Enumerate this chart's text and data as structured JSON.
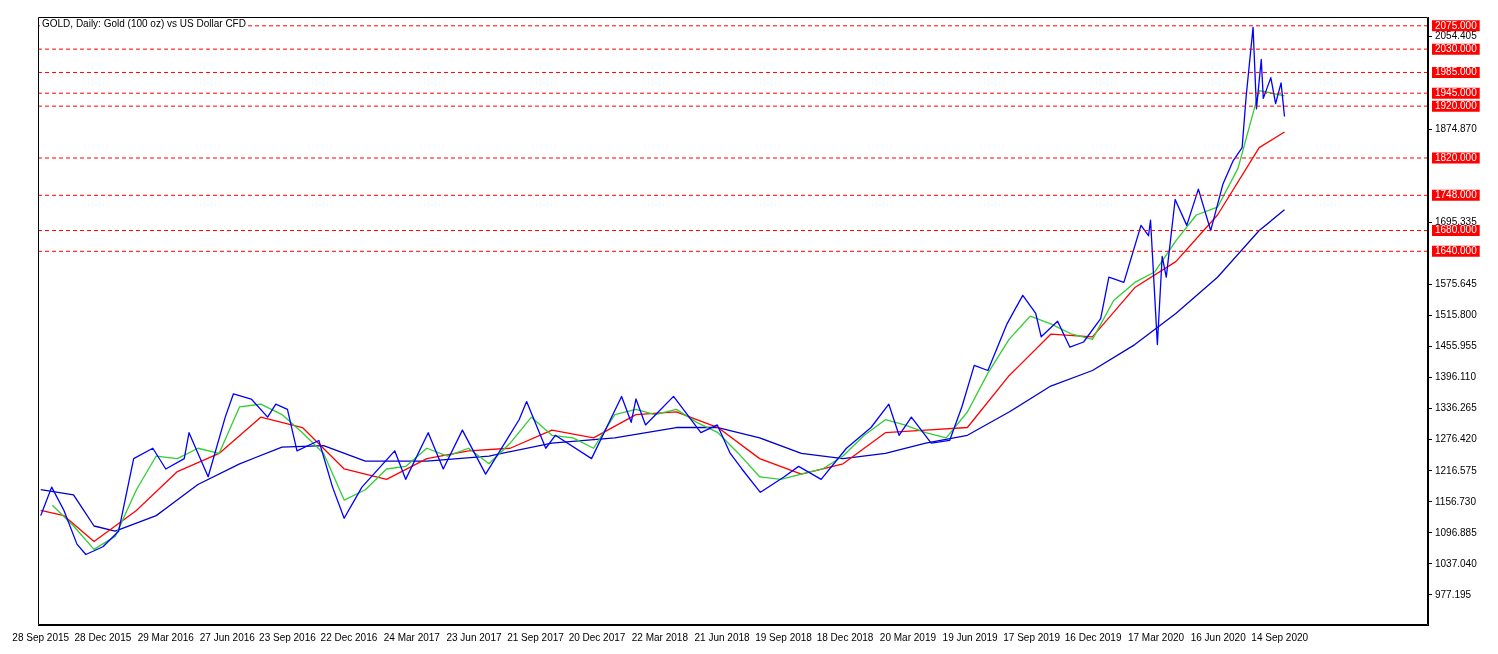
{
  "chart_data": {
    "type": "line",
    "title": "GOLD, Daily: Gold (100 oz) vs US Dollar CFD",
    "xlim": [
      "2015-09-24",
      "2021-04-19"
    ],
    "xticks": [
      {
        "value": "2015-09-28",
        "label": "28 Sep 2015"
      },
      {
        "value": "2015-12-28",
        "label": "28 Dec 2015"
      },
      {
        "value": "2016-03-29",
        "label": "29 Mar 2016"
      },
      {
        "value": "2016-06-27",
        "label": "27 Jun 2016"
      },
      {
        "value": "2016-09-23",
        "label": "23 Sep 2016"
      },
      {
        "value": "2016-12-22",
        "label": "22 Dec 2016"
      },
      {
        "value": "2017-03-24",
        "label": "24 Mar 2017"
      },
      {
        "value": "2017-06-23",
        "label": "23 Jun 2017"
      },
      {
        "value": "2017-09-21",
        "label": "21 Sep 2017"
      },
      {
        "value": "2017-12-20",
        "label": "20 Dec 2017"
      },
      {
        "value": "2018-03-22",
        "label": "22 Mar 2018"
      },
      {
        "value": "2018-06-21",
        "label": "21 Jun 2018"
      },
      {
        "value": "2018-09-19",
        "label": "19 Sep 2018"
      },
      {
        "value": "2018-12-18",
        "label": "18 Dec 2018"
      },
      {
        "value": "2019-03-20",
        "label": "20 Mar 2019"
      },
      {
        "value": "2019-06-19",
        "label": "19 Jun 2019"
      },
      {
        "value": "2019-09-17",
        "label": "17 Sep 2019"
      },
      {
        "value": "2019-12-16",
        "label": "16 Dec 2019"
      },
      {
        "value": "2020-03-17",
        "label": "17 Mar 2020"
      },
      {
        "value": "2020-06-16",
        "label": "16 Jun 2020"
      },
      {
        "value": "2020-09-14",
        "label": "14 Sep 2020"
      }
    ],
    "ylim": [
      919,
      2092
    ],
    "yticks": [
      977.195,
      {
        "value": 1037.04,
        "label": "1037.040"
      },
      1096.885,
      {
        "value": 1156.73,
        "label": "1156.730"
      },
      1216.575,
      {
        "value": 1276.42,
        "label": "1276.420"
      },
      1336.265,
      {
        "value": 1396.11,
        "label": "1396.110"
      },
      1455.955,
      {
        "value": 1515.8,
        "label": "1515.800"
      },
      1575.645,
      1695.335,
      {
        "value": 1874.87,
        "label": "1874.870"
      },
      2054.405
    ],
    "grid": false,
    "legend": false,
    "marker": "none",
    "line_style": "solid",
    "series": [
      {
        "color": "#0000ff",
        "x": [
          "2015-09-28",
          "2015-10-14",
          "2015-11-01",
          "2015-11-20",
          "2015-12-03",
          "2015-12-28",
          "2016-01-20",
          "2016-02-11",
          "2016-03-10",
          "2016-03-29",
          "2016-04-25",
          "2016-05-02",
          "2016-05-30",
          "2016-06-24",
          "2016-07-06",
          "2016-08-01",
          "2016-08-25",
          "2016-09-06",
          "2016-09-23",
          "2016-10-07",
          "2016-11-08",
          "2016-11-28",
          "2016-12-15",
          "2017-01-10",
          "2017-02-27",
          "2017-03-15",
          "2017-04-17",
          "2017-05-09",
          "2017-06-06",
          "2017-07-10",
          "2017-08-28",
          "2017-09-08",
          "2017-10-06",
          "2017-10-20",
          "2017-12-12",
          "2018-01-25",
          "2018-02-08",
          "2018-02-15",
          "2018-03-01",
          "2018-04-11",
          "2018-05-21",
          "2018-06-14",
          "2018-07-03",
          "2018-07-20",
          "2018-08-16",
          "2018-09-20",
          "2018-10-11",
          "2018-11-13",
          "2018-12-20",
          "2019-01-25",
          "2019-02-20",
          "2019-03-07",
          "2019-03-25",
          "2019-04-23",
          "2019-05-20",
          "2019-06-07",
          "2019-06-25",
          "2019-07-15",
          "2019-08-12",
          "2019-09-04",
          "2019-09-23",
          "2019-10-01",
          "2019-10-25",
          "2019-11-12",
          "2019-12-02",
          "2019-12-27",
          "2020-01-08",
          "2020-01-30",
          "2020-02-24",
          "2020-03-06",
          "2020-03-09",
          "2020-03-19",
          "2020-03-26",
          "2020-04-01",
          "2020-04-14",
          "2020-05-01",
          "2020-05-18",
          "2020-06-05",
          "2020-06-23",
          "2020-07-08",
          "2020-07-21",
          "2020-07-27",
          "2020-08-06",
          "2020-08-11",
          "2020-08-18",
          "2020-08-21",
          "2020-09-01",
          "2020-09-08",
          "2020-09-16",
          "2020-09-21"
        ],
        "values": [
          1130,
          1185,
          1140,
          1075,
          1055,
          1070,
          1100,
          1240,
          1260,
          1220,
          1240,
          1290,
          1205,
          1320,
          1365,
          1355,
          1320,
          1345,
          1335,
          1255,
          1275,
          1185,
          1125,
          1185,
          1255,
          1200,
          1290,
          1220,
          1295,
          1210,
          1315,
          1350,
          1260,
          1285,
          1240,
          1360,
          1310,
          1355,
          1305,
          1360,
          1290,
          1305,
          1250,
          1220,
          1175,
          1205,
          1225,
          1200,
          1260,
          1300,
          1345,
          1285,
          1320,
          1270,
          1275,
          1340,
          1420,
          1410,
          1500,
          1555,
          1520,
          1475,
          1505,
          1455,
          1465,
          1510,
          1590,
          1580,
          1690,
          1670,
          1700,
          1460,
          1630,
          1590,
          1740,
          1690,
          1760,
          1680,
          1770,
          1815,
          1840,
          1940,
          2072,
          1915,
          2010,
          1935,
          1975,
          1925,
          1965,
          1900
        ]
      },
      {
        "color": "#32cd32",
        "x": [
          "2015-10-15",
          "2015-11-15",
          "2015-12-15",
          "2016-01-15",
          "2016-02-15",
          "2016-03-15",
          "2016-04-15",
          "2016-05-15",
          "2016-06-15",
          "2016-07-15",
          "2016-08-15",
          "2016-09-15",
          "2016-10-15",
          "2016-11-15",
          "2016-12-15",
          "2017-01-15",
          "2017-02-15",
          "2017-03-15",
          "2017-04-15",
          "2017-05-15",
          "2017-06-15",
          "2017-07-15",
          "2017-08-15",
          "2017-09-15",
          "2017-10-15",
          "2017-11-15",
          "2017-12-15",
          "2018-01-15",
          "2018-02-15",
          "2018-03-15",
          "2018-04-15",
          "2018-05-15",
          "2018-06-15",
          "2018-07-15",
          "2018-08-15",
          "2018-09-15",
          "2018-10-15",
          "2018-11-15",
          "2018-12-15",
          "2019-01-15",
          "2019-02-15",
          "2019-03-15",
          "2019-04-15",
          "2019-05-15",
          "2019-06-15",
          "2019-07-15",
          "2019-08-15",
          "2019-09-15",
          "2019-10-15",
          "2019-11-15",
          "2019-12-15",
          "2020-01-15",
          "2020-02-15",
          "2020-03-15",
          "2020-04-15",
          "2020-05-15",
          "2020-06-15",
          "2020-07-15",
          "2020-08-15",
          "2020-09-21"
        ],
        "values": [
          1150,
          1110,
          1065,
          1090,
          1180,
          1245,
          1240,
          1260,
          1250,
          1340,
          1345,
          1325,
          1290,
          1250,
          1160,
          1180,
          1220,
          1225,
          1260,
          1245,
          1260,
          1230,
          1270,
          1320,
          1285,
          1280,
          1260,
          1325,
          1335,
          1325,
          1335,
          1310,
          1290,
          1250,
          1205,
          1200,
          1210,
          1220,
          1245,
          1285,
          1315,
          1305,
          1290,
          1280,
          1330,
          1405,
          1470,
          1515,
          1500,
          1480,
          1470,
          1545,
          1580,
          1600,
          1660,
          1710,
          1725,
          1800,
          1950,
          1940
        ]
      },
      {
        "color": "#ff0000",
        "x": [
          "2015-09-28",
          "2015-11-01",
          "2015-12-15",
          "2016-02-15",
          "2016-04-15",
          "2016-06-15",
          "2016-08-15",
          "2016-10-15",
          "2016-12-15",
          "2017-02-15",
          "2017-04-15",
          "2017-06-15",
          "2017-08-15",
          "2017-10-15",
          "2017-12-15",
          "2018-02-15",
          "2018-04-15",
          "2018-06-15",
          "2018-08-15",
          "2018-10-15",
          "2018-12-15",
          "2019-02-15",
          "2019-04-15",
          "2019-06-15",
          "2019-08-15",
          "2019-10-15",
          "2019-12-15",
          "2020-02-15",
          "2020-04-15",
          "2020-06-15",
          "2020-08-15",
          "2020-09-21"
        ],
        "values": [
          1140,
          1130,
          1080,
          1140,
          1215,
          1250,
          1320,
          1300,
          1220,
          1200,
          1240,
          1255,
          1260,
          1295,
          1280,
          1325,
          1330,
          1300,
          1240,
          1210,
          1230,
          1290,
          1295,
          1300,
          1400,
          1480,
          1475,
          1570,
          1620,
          1710,
          1840,
          1870
        ]
      },
      {
        "color": "#0000cd",
        "x": [
          "2015-09-28",
          "2015-11-15",
          "2015-12-15",
          "2016-01-15",
          "2016-03-15",
          "2016-05-15",
          "2016-07-15",
          "2016-09-15",
          "2016-11-15",
          "2017-01-15",
          "2017-04-15",
          "2017-07-15",
          "2017-10-15",
          "2018-01-15",
          "2018-04-15",
          "2018-06-15",
          "2018-08-15",
          "2018-10-15",
          "2018-12-15",
          "2019-02-15",
          "2019-04-15",
          "2019-06-15",
          "2019-08-15",
          "2019-10-15",
          "2019-12-15",
          "2020-02-15",
          "2020-04-15",
          "2020-06-15",
          "2020-08-15",
          "2020-09-21"
        ],
        "values": [
          1180,
          1170,
          1110,
          1100,
          1130,
          1190,
          1230,
          1262,
          1265,
          1235,
          1235,
          1245,
          1270,
          1280,
          1300,
          1300,
          1280,
          1250,
          1240,
          1250,
          1270,
          1285,
          1330,
          1380,
          1410,
          1460,
          1520,
          1590,
          1680,
          1720
        ]
      }
    ],
    "ref_lines": [
      {
        "axis": "y",
        "value": 2075,
        "label": "2075.000",
        "color": "#ff0000",
        "line_style": "dashed"
      },
      {
        "axis": "y",
        "value": 2030,
        "label": "2030.000",
        "color": "#ff0000",
        "line_style": "dashed"
      },
      {
        "axis": "y",
        "value": 1985,
        "label": "1985.000",
        "color": "#ff0000",
        "line_style": "dashed"
      },
      {
        "axis": "y",
        "value": 1945,
        "label": "1945.000",
        "color": "#ff0000",
        "line_style": "dashed"
      },
      {
        "axis": "y",
        "value": 1920,
        "label": "1920.000",
        "color": "#ff0000",
        "line_style": "dashed"
      },
      {
        "axis": "y",
        "value": 1820,
        "label": "1820.000",
        "color": "#ff0000",
        "line_style": "dashed"
      },
      {
        "axis": "y",
        "value": 1748,
        "label": "1748.000",
        "color": "#ff0000",
        "line_style": "dashed"
      },
      {
        "axis": "y",
        "value": 1680,
        "label": "1680.000",
        "color": "#ff0000",
        "line_style": "dashed"
      },
      {
        "axis": "y",
        "value": 1640,
        "label": "1640.000",
        "color": "#ff0000",
        "line_style": "dashed"
      }
    ]
  }
}
